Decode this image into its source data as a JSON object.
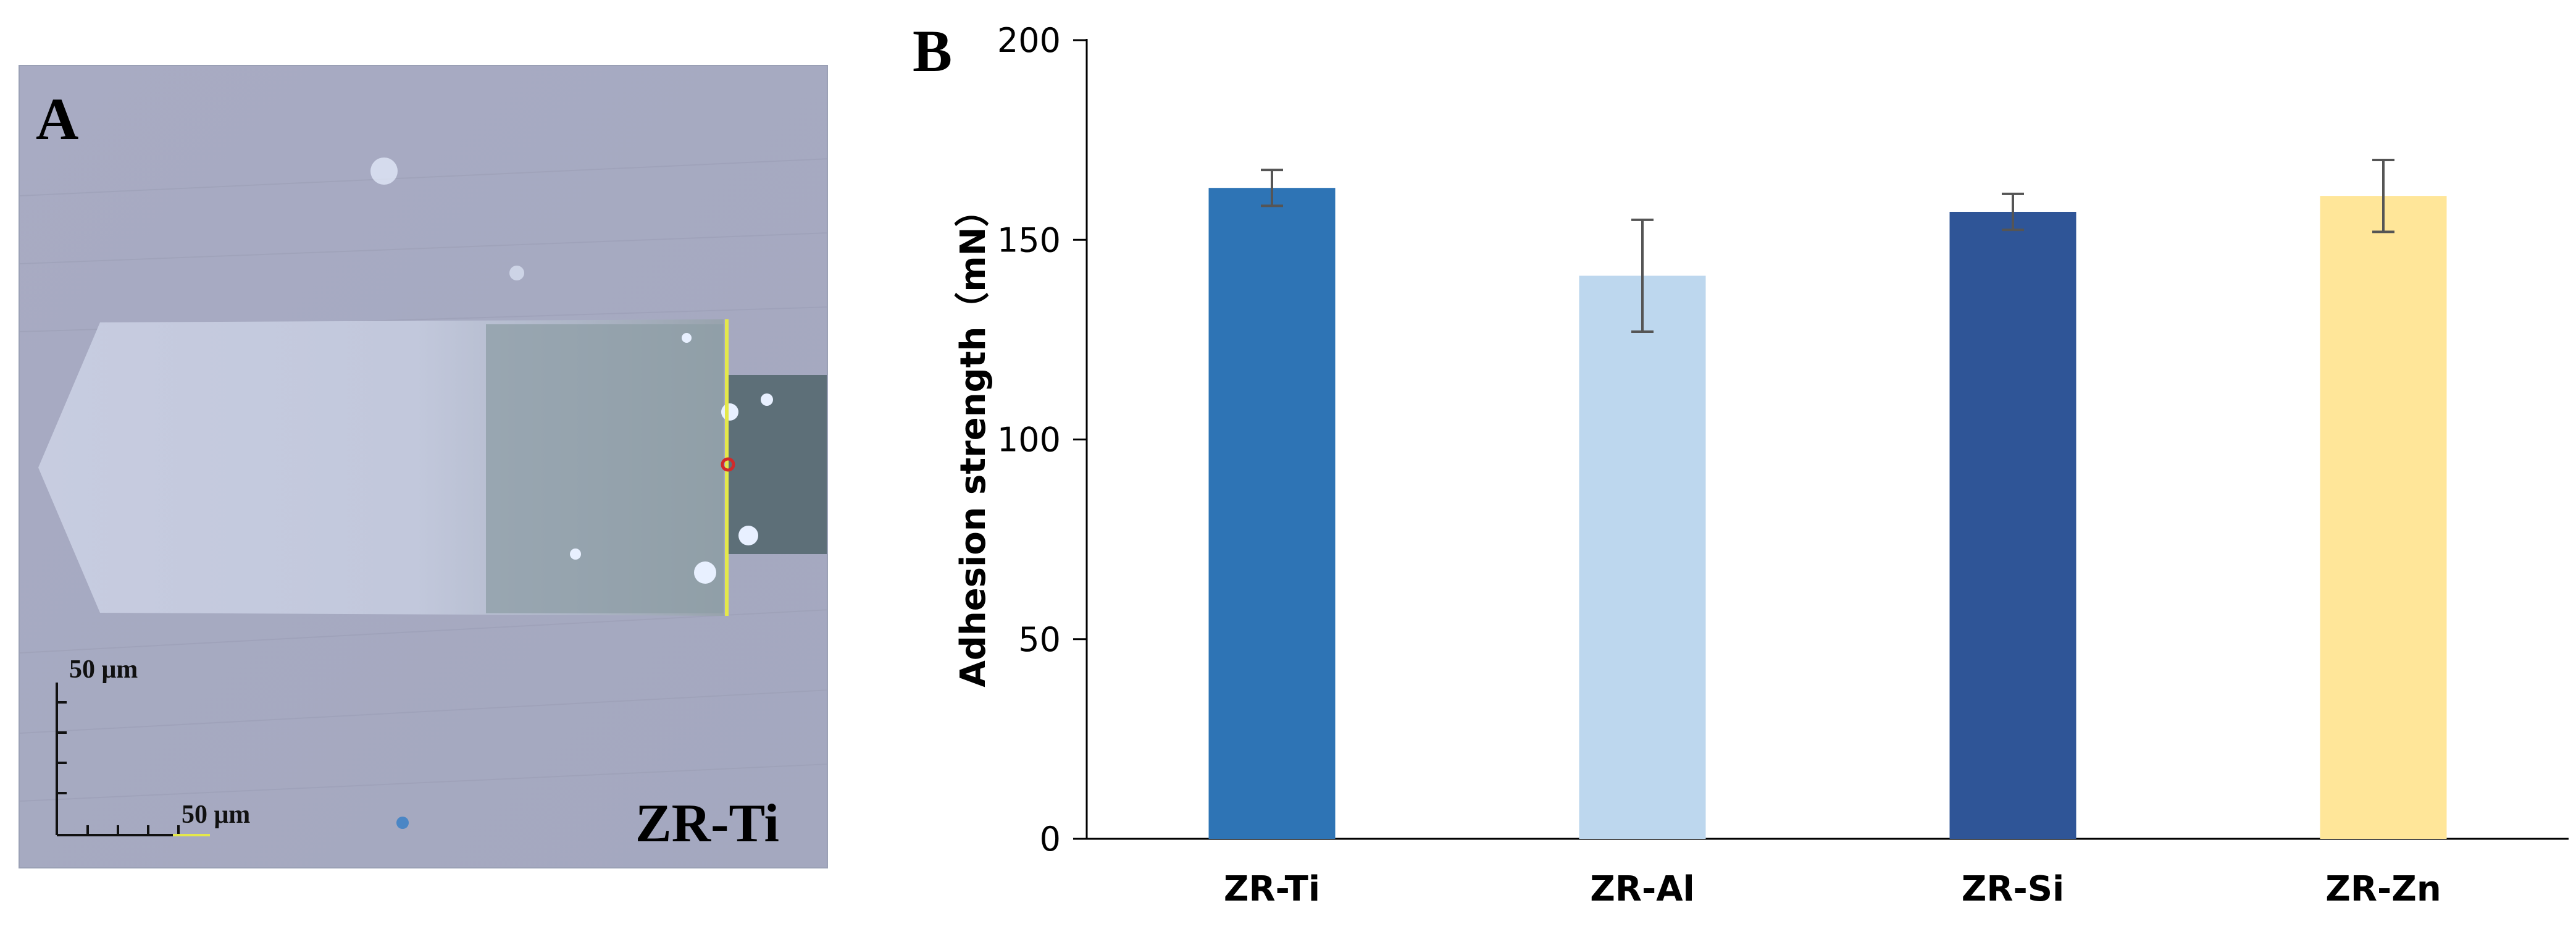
{
  "panel_a": {
    "label": "A",
    "scale_bar_vertical": "50 μm",
    "scale_bar_horizontal": "50 μm",
    "sample_label": "ZR-Ti"
  },
  "panel_b": {
    "label": "B"
  },
  "chart_data": {
    "type": "bar",
    "title": "",
    "xlabel": "",
    "ylabel": "Adhesion strength（mN）",
    "categories": [
      "ZR-Ti",
      "ZR-Al",
      "ZR-Si",
      "ZR-Zn"
    ],
    "values": [
      163,
      141,
      157,
      161
    ],
    "errors": [
      4.5,
      14,
      4.5,
      9
    ],
    "colors": [
      "#2e74b5",
      "#bdd7ee",
      "#2f5597",
      "#ffe699"
    ],
    "ylim": [
      0,
      200
    ],
    "yticks": [
      0,
      50,
      100,
      150,
      200
    ],
    "grid": false
  }
}
